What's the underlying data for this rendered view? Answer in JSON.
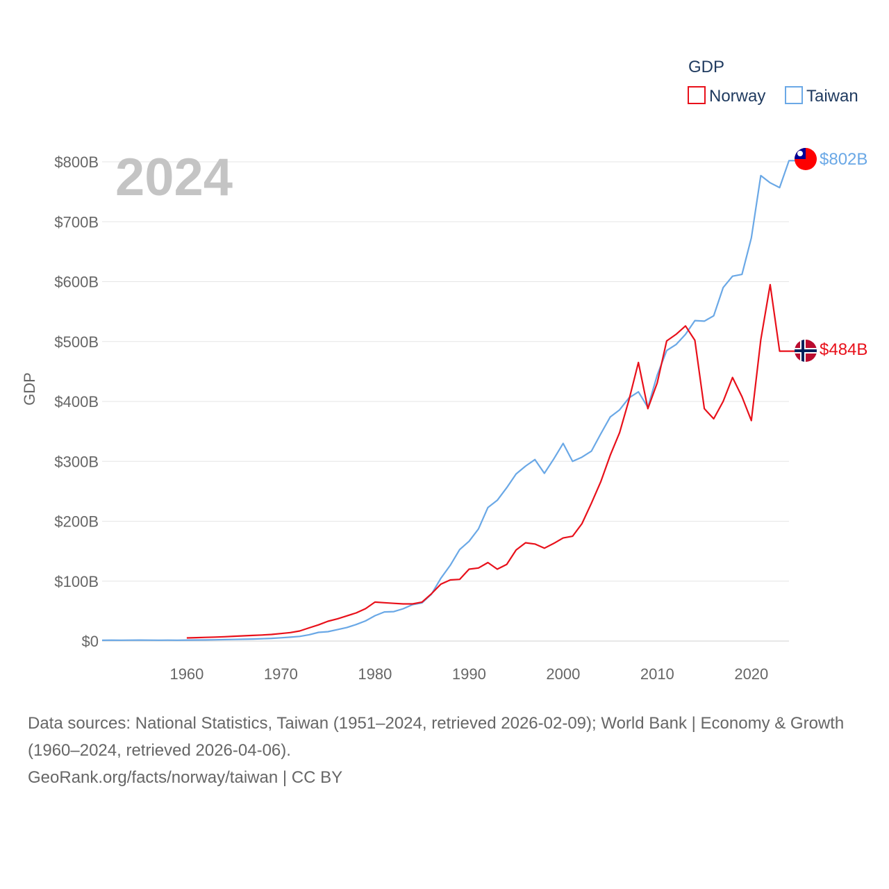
{
  "chart_data": {
    "type": "line",
    "title": "GDP",
    "ylabel": "GDP",
    "xlabel": "",
    "year_label": "2024",
    "xlim": [
      1951,
      2024
    ],
    "ylim": [
      0,
      800
    ],
    "x_ticks": [
      1960,
      1970,
      1980,
      1990,
      2000,
      2010,
      2020
    ],
    "y_ticks": [
      {
        "value": 0,
        "label": "$0"
      },
      {
        "value": 100,
        "label": "$100B"
      },
      {
        "value": 200,
        "label": "$200B"
      },
      {
        "value": 300,
        "label": "$300B"
      },
      {
        "value": 400,
        "label": "$400B"
      },
      {
        "value": 500,
        "label": "$500B"
      },
      {
        "value": 600,
        "label": "$600B"
      },
      {
        "value": 700,
        "label": "$700B"
      },
      {
        "value": 800,
        "label": "$800B"
      }
    ],
    "units": "billions USD",
    "legend": {
      "title": "GDP",
      "position": "top-right"
    },
    "series": [
      {
        "name": "Norway",
        "color": "#e8101a",
        "end_label": "$484B",
        "flag_icon": "norway-flag-icon",
        "x": [
          1960,
          1961,
          1962,
          1963,
          1964,
          1965,
          1966,
          1967,
          1968,
          1969,
          1970,
          1971,
          1972,
          1973,
          1974,
          1975,
          1976,
          1977,
          1978,
          1979,
          1980,
          1981,
          1982,
          1983,
          1984,
          1985,
          1986,
          1987,
          1988,
          1989,
          1990,
          1991,
          1992,
          1993,
          1994,
          1995,
          1996,
          1997,
          1998,
          1999,
          2000,
          2001,
          2002,
          2003,
          2004,
          2005,
          2006,
          2007,
          2008,
          2009,
          2010,
          2011,
          2012,
          2013,
          2014,
          2015,
          2016,
          2017,
          2018,
          2019,
          2020,
          2021,
          2022,
          2023,
          2024
        ],
        "values": [
          5.2,
          5.7,
          6.1,
          6.6,
          7.2,
          8.0,
          8.7,
          9.4,
          10.1,
          11.0,
          12.5,
          14.2,
          16.8,
          22.0,
          27.0,
          33.0,
          37.0,
          42.0,
          47.0,
          54.0,
          65.0,
          64.0,
          63.0,
          62.0,
          62.0,
          65.0,
          79.0,
          95.0,
          102.0,
          103.0,
          120.0,
          122.0,
          131.0,
          120.0,
          128.0,
          152.0,
          164.0,
          162.0,
          155.0,
          163.0,
          172.0,
          175.0,
          196.0,
          230.0,
          266.0,
          310.0,
          348.0,
          403.0,
          465.0,
          388.0,
          431.0,
          501.0,
          512.0,
          526.0,
          502.0,
          388.0,
          371.0,
          400.0,
          440.0,
          408.0,
          368.0,
          503.0,
          595.0,
          484.0,
          484.0
        ]
      },
      {
        "name": "Taiwan",
        "color": "#6aa8e6",
        "end_label": "$802B",
        "flag_icon": "taiwan-flag-icon",
        "x": [
          1951,
          1952,
          1953,
          1954,
          1955,
          1956,
          1957,
          1958,
          1959,
          1960,
          1961,
          1962,
          1963,
          1964,
          1965,
          1966,
          1967,
          1968,
          1969,
          1970,
          1971,
          1972,
          1973,
          1974,
          1975,
          1976,
          1977,
          1978,
          1979,
          1980,
          1981,
          1982,
          1983,
          1984,
          1985,
          1986,
          1987,
          1988,
          1989,
          1990,
          1991,
          1992,
          1993,
          1994,
          1995,
          1996,
          1997,
          1998,
          1999,
          2000,
          2001,
          2002,
          2003,
          2004,
          2005,
          2006,
          2007,
          2008,
          2009,
          2010,
          2011,
          2012,
          2013,
          2014,
          2015,
          2016,
          2017,
          2018,
          2019,
          2020,
          2021,
          2022,
          2023,
          2024
        ],
        "values": [
          1.3,
          1.5,
          1.4,
          1.5,
          1.6,
          1.5,
          1.4,
          1.5,
          1.4,
          1.6,
          1.7,
          1.9,
          2.1,
          2.4,
          2.7,
          3.0,
          3.4,
          3.9,
          4.5,
          5.5,
          6.5,
          7.8,
          10.5,
          14.5,
          15.6,
          19.0,
          22.5,
          27.6,
          33.6,
          42.3,
          48.6,
          49.2,
          53.9,
          60.9,
          63.6,
          78.2,
          104.7,
          126.5,
          152.7,
          166.6,
          187.1,
          223.0,
          235.0,
          256.0,
          279.0,
          292.0,
          303.0,
          280.0,
          304.0,
          330.0,
          300.0,
          307.0,
          317.0,
          346.0,
          374.0,
          386.0,
          406.0,
          416.0,
          390.0,
          444.0,
          485.0,
          495.0,
          512.0,
          535.0,
          534.0,
          543.0,
          590.0,
          609.0,
          612.0,
          673.0,
          777.0,
          765.0,
          757.0,
          802.0
        ]
      }
    ]
  },
  "source": {
    "line1": "Data sources: National Statistics, Taiwan (1951–2024, retrieved 2026-02-09); World Bank | Economy & Growth (1960–2024, retrieved 2026-04-06).",
    "line2": "GeoRank.org/facts/norway/taiwan | CC BY"
  }
}
